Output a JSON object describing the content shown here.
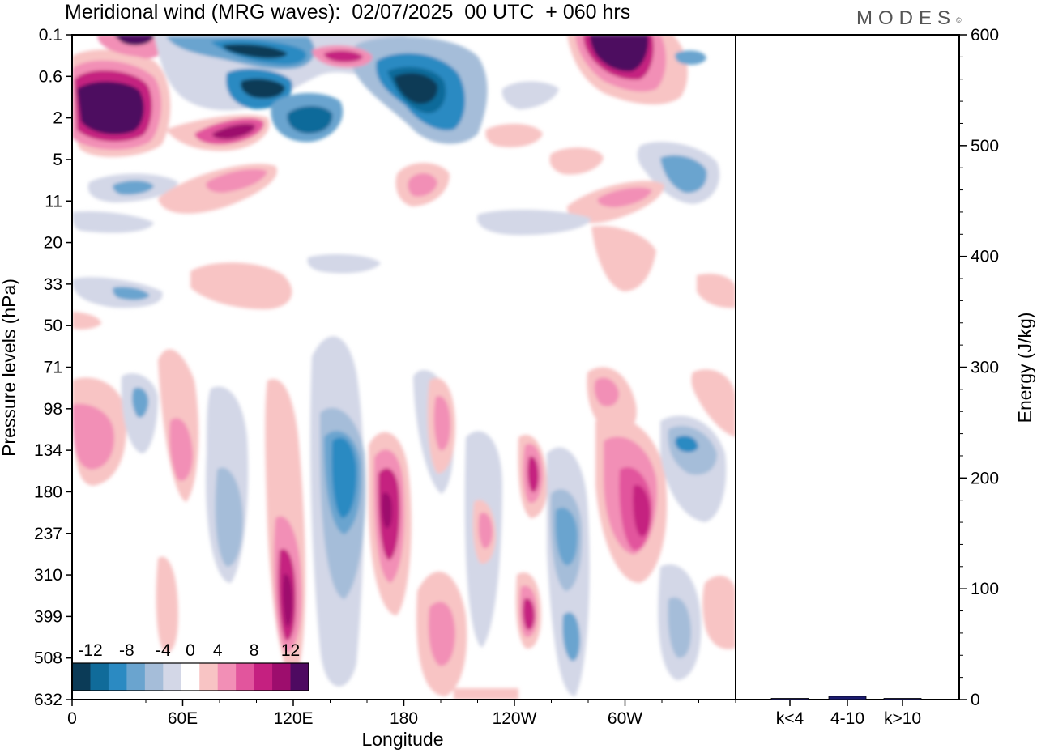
{
  "title": "Meridional wind (MRG waves):  02/07/2025  00 UTC  + 060 hrs",
  "logo": "MODES",
  "chart_data": [
    {
      "type": "heatmap",
      "title": "Meridional wind (MRG waves):  02/07/2025  00 UTC  + 060 hrs",
      "xlabel": "Longitude",
      "ylabel": "Pressure levels (hPa)",
      "x_ticks": [
        "0",
        "60E",
        "120E",
        "180",
        "120W",
        "60W"
      ],
      "x_tick_values": [
        0,
        60,
        120,
        180,
        240,
        300
      ],
      "xlim": [
        0,
        360
      ],
      "y_ticks": [
        "0.1",
        "0.6",
        "2",
        "5",
        "11",
        "20",
        "33",
        "50",
        "71",
        "98",
        "134",
        "180",
        "237",
        "310",
        "399",
        "508",
        "632"
      ],
      "y_scale": "log",
      "colorbar": {
        "labels": [
          "-12",
          "-8",
          "-4",
          "0",
          "4",
          "8",
          "12"
        ],
        "levels": [
          -12,
          -10,
          -8,
          -6,
          -4,
          -2,
          2,
          4,
          6,
          8,
          10,
          12
        ],
        "colors": [
          "#0b3b57",
          "#106b9a",
          "#2b8ac2",
          "#6aa4cf",
          "#a5bdd9",
          "#d3d7e7",
          "#ffffff",
          "#f8c4c4",
          "#f28fb6",
          "#e2559d",
          "#c52080",
          "#9d0d6d",
          "#4e0a61"
        ],
        "placement": "bottom-left"
      },
      "features": [
        {
          "lon": 20,
          "plev": 1.3,
          "value": 14
        },
        {
          "lon": 30,
          "plev": 0.13,
          "value": 12
        },
        {
          "lon": 120,
          "plev": 0.15,
          "value": -11
        },
        {
          "lon": 100,
          "plev": 0.8,
          "value": -12
        },
        {
          "lon": 190,
          "plev": 0.7,
          "value": -13
        },
        {
          "lon": 137,
          "plev": 2.3,
          "value": -10
        },
        {
          "lon": 77,
          "plev": 2.4,
          "value": 9
        },
        {
          "lon": 150,
          "plev": 0.28,
          "value": 6
        },
        {
          "lon": 290,
          "plev": 0.2,
          "value": 14
        },
        {
          "lon": 10,
          "plev": 140,
          "value": 7
        },
        {
          "lon": 150,
          "plev": 190,
          "value": -8
        },
        {
          "lon": 170,
          "plev": 180,
          "value": 10
        },
        {
          "lon": 115,
          "plev": 340,
          "value": 9
        },
        {
          "lon": 268,
          "plev": 220,
          "value": -7
        },
        {
          "lon": 311,
          "plev": 210,
          "value": 9
        },
        {
          "lon": 245,
          "plev": 385,
          "value": 9
        },
        {
          "lon": 330,
          "plev": 135,
          "value": -6
        }
      ]
    },
    {
      "type": "bar",
      "categories": [
        "k<4",
        "4-10",
        "k>10"
      ],
      "values": [
        0,
        3,
        0
      ],
      "ylabel": "Energy (J/kg)",
      "ylim": [
        0,
        600
      ],
      "y_ticks": [
        "0",
        "100",
        "200",
        "300",
        "400",
        "500",
        "600"
      ],
      "bar_color": "#1a1a6e"
    }
  ]
}
